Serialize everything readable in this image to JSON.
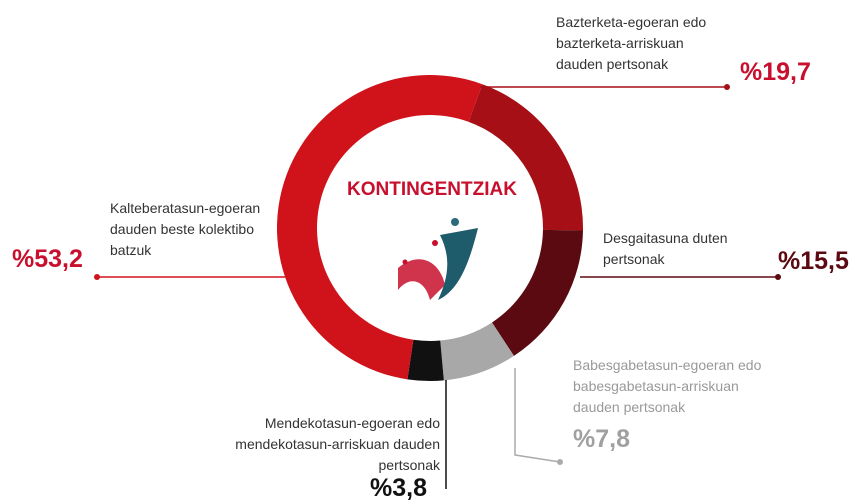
{
  "chart_data": {
    "type": "donut",
    "title": "KONTINGENTZIAK",
    "categories": [
      "Bazterketa-egoeran edo bazterketa-arriskuan dauden pertsonak",
      "Desgaitasuna duten pertsonak",
      "Babesgabetasun-egoeran edo babesgabetasun-arriskuan dauden pertsonak",
      "Mendekotasun-egoeran edo mendekotasun-arriskuan dauden pertsonak",
      "Kalteberatasun-egoeran dauden beste kolektibo batzuk"
    ],
    "values": [
      19.7,
      15.5,
      7.8,
      3.8,
      53.2
    ],
    "value_labels": [
      "%19,7",
      "%15,5",
      "%7,8",
      "%3,8",
      "%53,2"
    ],
    "colors": [
      "#a50f15",
      "#5a0a10",
      "#a8a8a8",
      "#111111",
      "#d0121b"
    ]
  }
}
